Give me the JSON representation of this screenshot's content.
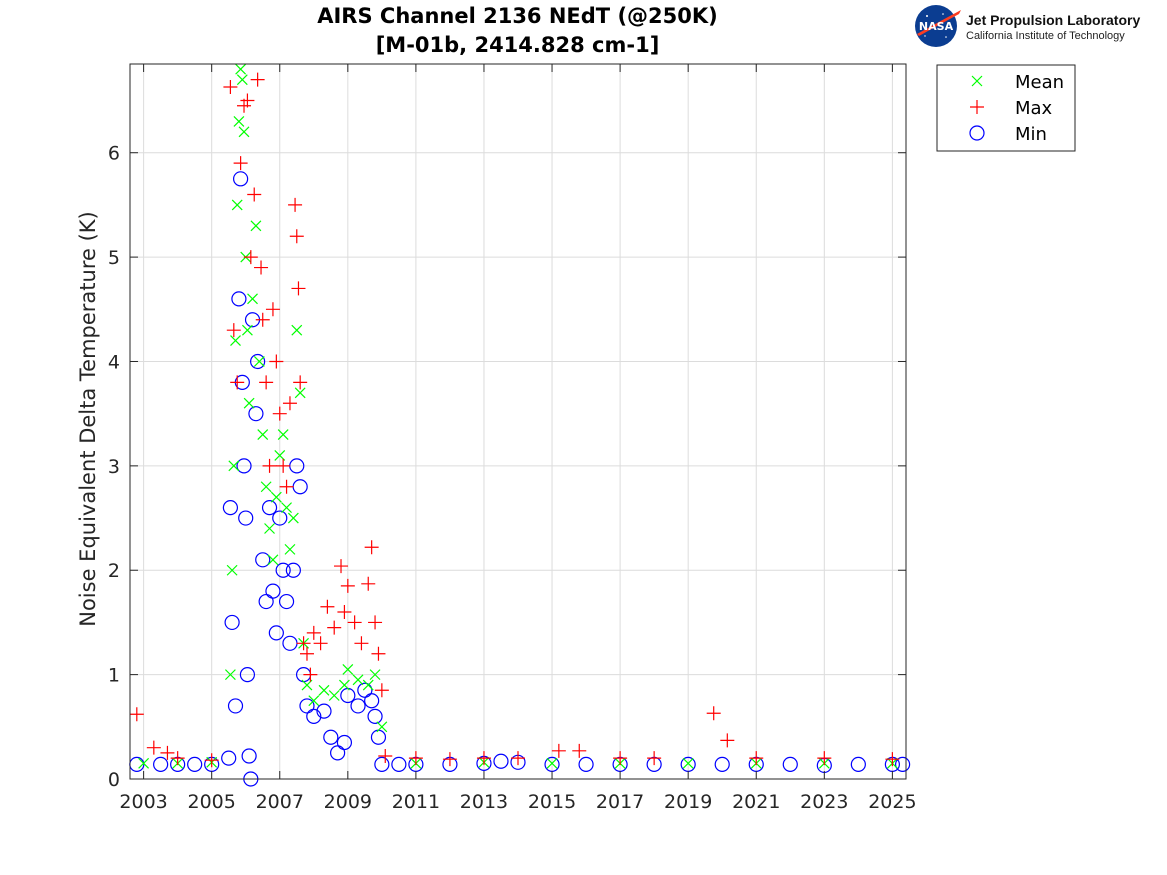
{
  "chart_data": {
    "type": "scatter",
    "title": "AIRS Channel 2136 NEdT (@250K)",
    "subtitle": "[M-01b, 2414.828 cm-1]",
    "xlabel": "",
    "ylabel": "Noise Equivalent Delta Temperature (K)",
    "xlim": [
      2002.6,
      2025.4
    ],
    "ylim": [
      0,
      6.85
    ],
    "x_ticks": [
      2003,
      2005,
      2007,
      2009,
      2011,
      2013,
      2015,
      2017,
      2019,
      2021,
      2023,
      2025
    ],
    "x_tick_labels": [
      "2003",
      "2005",
      "2007",
      "2009",
      "2011",
      "2013",
      "2015",
      "2017",
      "2019",
      "2021",
      "2023",
      "2025"
    ],
    "y_ticks": [
      0,
      1,
      2,
      3,
      4,
      5,
      6
    ],
    "y_tick_labels": [
      "0",
      "1",
      "2",
      "3",
      "4",
      "5",
      "6"
    ],
    "grid": true,
    "legend": {
      "placement": "outside-top-right",
      "entries": [
        {
          "name": "Mean",
          "marker": "x",
          "color": "#00ff00"
        },
        {
          "name": "Max",
          "marker": "+",
          "color": "#ff0000"
        },
        {
          "name": "Min",
          "marker": "o",
          "color": "#0000ff"
        }
      ]
    },
    "series": [
      {
        "name": "Mean",
        "marker": "x",
        "color": "#00ff00",
        "x": [
          2003.0,
          2004.0,
          2005.0,
          2005.55,
          2005.6,
          2005.65,
          2005.7,
          2005.75,
          2005.8,
          2005.85,
          2005.9,
          2005.95,
          2006.0,
          2006.05,
          2006.1,
          2006.2,
          2006.3,
          2006.4,
          2006.5,
          2006.6,
          2006.7,
          2006.8,
          2006.9,
          2007.0,
          2007.1,
          2007.2,
          2007.3,
          2007.4,
          2007.5,
          2007.6,
          2007.7,
          2007.8,
          2008.0,
          2008.3,
          2008.6,
          2008.9,
          2009.0,
          2009.3,
          2009.6,
          2009.8,
          2010.0,
          2011.0,
          2013.0,
          2015.0,
          2017.0,
          2019.0,
          2021.0,
          2023.0,
          2025.0
        ],
        "y": [
          0.15,
          0.15,
          0.16,
          1.0,
          2.0,
          3.0,
          4.2,
          5.5,
          6.3,
          6.8,
          6.7,
          6.2,
          5.0,
          4.3,
          3.6,
          4.6,
          5.3,
          4.0,
          3.3,
          2.8,
          2.4,
          2.1,
          2.7,
          3.1,
          3.3,
          2.6,
          2.2,
          2.5,
          4.3,
          3.7,
          1.3,
          0.9,
          0.75,
          0.85,
          0.8,
          0.9,
          1.05,
          0.95,
          0.9,
          1.0,
          0.5,
          0.15,
          0.16,
          0.15,
          0.15,
          0.15,
          0.15,
          0.15,
          0.15
        ]
      },
      {
        "name": "Max",
        "marker": "+",
        "color": "#ff0000",
        "x": [
          2002.8,
          2003.3,
          2003.7,
          2004.0,
          2005.0,
          2005.55,
          2005.65,
          2005.75,
          2005.85,
          2005.95,
          2006.05,
          2006.15,
          2006.25,
          2006.35,
          2006.45,
          2006.5,
          2006.6,
          2006.7,
          2006.8,
          2006.9,
          2007.0,
          2007.1,
          2007.2,
          2007.3,
          2007.45,
          2007.5,
          2007.55,
          2007.6,
          2007.7,
          2007.8,
          2007.9,
          2008.0,
          2008.2,
          2008.4,
          2008.6,
          2008.8,
          2008.9,
          2009.0,
          2009.2,
          2009.4,
          2009.6,
          2009.7,
          2009.8,
          2009.9,
          2010.0,
          2010.1,
          2011.0,
          2012.0,
          2013.0,
          2014.0,
          2015.2,
          2015.8,
          2017.0,
          2018.0,
          2019.75,
          2020.15,
          2021.0,
          2023.0,
          2025.0
        ],
        "y": [
          0.62,
          0.3,
          0.25,
          0.2,
          0.18,
          6.63,
          4.3,
          3.8,
          5.9,
          6.45,
          6.5,
          5.0,
          5.6,
          6.7,
          4.9,
          4.4,
          3.8,
          3.0,
          4.5,
          4.0,
          3.5,
          3.0,
          2.8,
          3.6,
          5.5,
          5.2,
          4.7,
          3.8,
          1.3,
          1.2,
          1.0,
          1.4,
          1.3,
          1.65,
          1.45,
          2.04,
          1.6,
          1.85,
          1.5,
          1.3,
          1.87,
          2.22,
          1.5,
          1.2,
          0.85,
          0.22,
          0.2,
          0.19,
          0.2,
          0.2,
          0.27,
          0.27,
          0.2,
          0.2,
          0.63,
          0.37,
          0.2,
          0.2,
          0.19
        ]
      },
      {
        "name": "Min",
        "marker": "o",
        "color": "#0000ff",
        "x": [
          2002.8,
          2003.5,
          2004.0,
          2004.5,
          2005.0,
          2005.5,
          2005.55,
          2005.6,
          2005.7,
          2005.8,
          2005.85,
          2005.9,
          2005.95,
          2006.0,
          2006.05,
          2006.1,
          2006.15,
          2006.2,
          2006.3,
          2006.35,
          2006.5,
          2006.6,
          2006.7,
          2006.8,
          2006.9,
          2007.0,
          2007.1,
          2007.2,
          2007.3,
          2007.4,
          2007.5,
          2007.6,
          2007.7,
          2007.8,
          2008.0,
          2008.3,
          2008.5,
          2008.7,
          2008.9,
          2009.0,
          2009.3,
          2009.5,
          2009.7,
          2009.8,
          2009.9,
          2010.0,
          2010.5,
          2011.0,
          2012.0,
          2013.0,
          2013.5,
          2014.0,
          2015.0,
          2016.0,
          2017.0,
          2018.0,
          2019.0,
          2020.0,
          2021.0,
          2022.0,
          2023.0,
          2024.0,
          2025.0,
          2025.3
        ],
        "y": [
          0.14,
          0.14,
          0.14,
          0.14,
          0.14,
          0.2,
          2.6,
          1.5,
          0.7,
          4.6,
          5.75,
          3.8,
          3.0,
          2.5,
          1.0,
          0.22,
          0.0,
          4.4,
          3.5,
          4.0,
          2.1,
          1.7,
          2.6,
          1.8,
          1.4,
          2.5,
          2.0,
          1.7,
          1.3,
          2.0,
          3.0,
          2.8,
          1.0,
          0.7,
          0.6,
          0.65,
          0.4,
          0.25,
          0.35,
          0.8,
          0.7,
          0.85,
          0.75,
          0.6,
          0.4,
          0.14,
          0.14,
          0.14,
          0.14,
          0.15,
          0.17,
          0.16,
          0.14,
          0.14,
          0.14,
          0.14,
          0.14,
          0.14,
          0.14,
          0.14,
          0.13,
          0.14,
          0.14,
          0.14
        ]
      }
    ]
  },
  "header": {
    "title_line1": "AIRS Channel 2136 NEdT (@250K)",
    "title_line2": "[M-01b, 2414.828 cm-1]"
  },
  "logo": {
    "org_name": "Jet Propulsion Laboratory",
    "org_subtitle": "California Institute of Technology",
    "badge_text": "NASA"
  }
}
